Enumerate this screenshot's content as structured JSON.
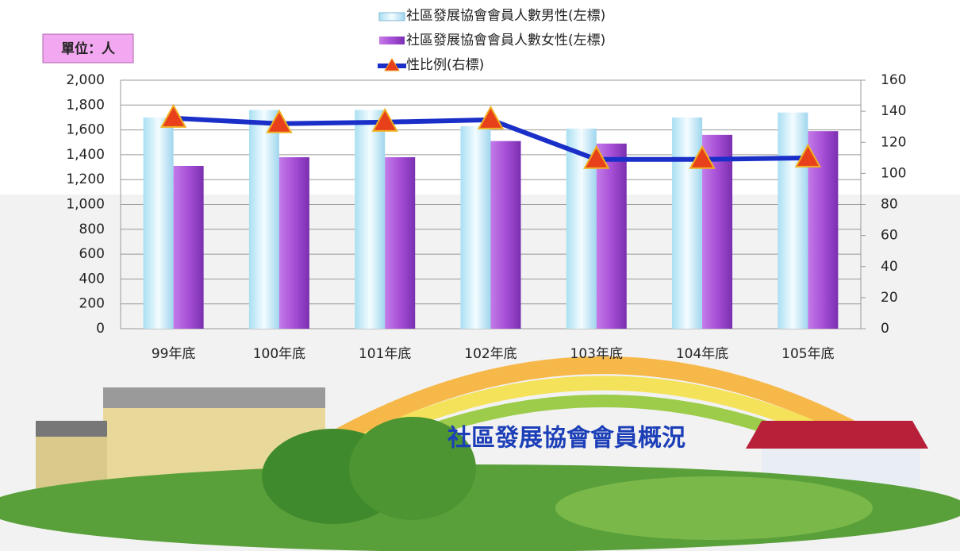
{
  "chart_data": {
    "type": "bar-line",
    "title": "社區發展協會會員概況",
    "unit_label": "單位：人",
    "categories": [
      "99年底",
      "100年底",
      "101年底",
      "102年底",
      "103年底",
      "104年底",
      "105年底"
    ],
    "series": [
      {
        "name": "社區發展協會會員人數男性(左標)",
        "color": "#cdeefa",
        "type": "bar",
        "values": [
          1700,
          1760,
          1760,
          1630,
          1610,
          1700,
          1740
        ]
      },
      {
        "name": "社區發展協會會員人數女性(左標)",
        "color": "#a64fd6",
        "type": "bar",
        "values": [
          1310,
          1380,
          1380,
          1510,
          1490,
          1560,
          1590
        ]
      },
      {
        "name": "性比例(右標)",
        "color": "#1a2fc8",
        "type": "line",
        "axis": "y2",
        "values": [
          135.5,
          132,
          133,
          134.5,
          109,
          109,
          110
        ]
      }
    ],
    "ylim": [
      0,
      2000
    ],
    "yticks": [
      0,
      200,
      400,
      600,
      800,
      {
        "value": 1000,
        "label": "1,000"
      },
      {
        "value": 1200,
        "label": "1,200"
      },
      {
        "value": 1400,
        "label": "1,400"
      },
      {
        "value": 1600,
        "label": "1,600"
      },
      {
        "value": 1800,
        "label": "1,800"
      },
      {
        "value": 2000,
        "label": "2,000"
      }
    ],
    "y2lim": [
      0,
      160
    ],
    "y2ticks": [
      0,
      20,
      40,
      60,
      80,
      100,
      120,
      140,
      160
    ],
    "grid": true
  }
}
